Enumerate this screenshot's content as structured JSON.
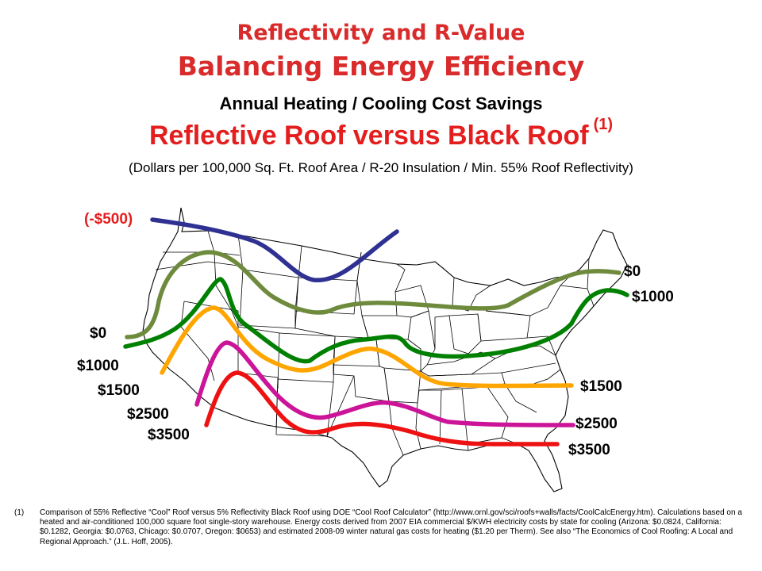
{
  "title": "Reflectivity and R-Value",
  "subtitle": "Balancing Energy Efficiency",
  "heading": "Annual Heating / Cooling Cost Savings",
  "main_heading": "Reflective Roof versus Black Roof",
  "main_heading_note": "(1)",
  "units_note": "(Dollars per 100,000 Sq. Ft. Roof Area / R-20 Insulation / Min. 55% Roof Reflectivity)",
  "colors": {
    "title_red": "#d92b2b",
    "neg500": "#2e3192",
    "zero": "#6e8b3d",
    "s1000": "#008000",
    "s1500": "#ffa500",
    "s2500": "#cc1499",
    "s3500": "#ee1111"
  },
  "contours": [
    {
      "key": "neg500",
      "value": -500,
      "label_left": "(-$500)",
      "label_right": ""
    },
    {
      "key": "zero",
      "value": 0,
      "label_left": "$0",
      "label_right": "$0"
    },
    {
      "key": "s1000",
      "value": 1000,
      "label_left": "$1000",
      "label_right": "$1000"
    },
    {
      "key": "s1500",
      "value": 1500,
      "label_left": "$1500",
      "label_right": "$1500"
    },
    {
      "key": "s2500",
      "value": 2500,
      "label_left": "$2500",
      "label_right": "$2500"
    },
    {
      "key": "s3500",
      "value": 3500,
      "label_left": "$3500",
      "label_right": "$3500"
    }
  ],
  "footnote_number": "(1)",
  "footnote": "Comparison of 55% Reflective “Cool” Roof versus 5% Reflectivity Black Roof using DOE “Cool Roof Calculator” (http://www.ornl.gov/sci/roofs+walls/facts/CoolCalcEnergy.htm). Calculations based on a heated and air-conditioned 100,000 square foot single-story warehouse. Energy costs derived from 2007 EIA commercial $/KWH electricity costs by state for cooling (Arizona: $0.0824, California: $0.1282, Georgia: $0.0763, Chicago: $0.0707, Oregon: $0653) and estimated 2008-09 winter natural gas costs for heating ($1.20 per Therm). See also “The Economics of Cool Roofing: A Local and Regional Approach.” (J.L. Hoff, 2005)."
}
